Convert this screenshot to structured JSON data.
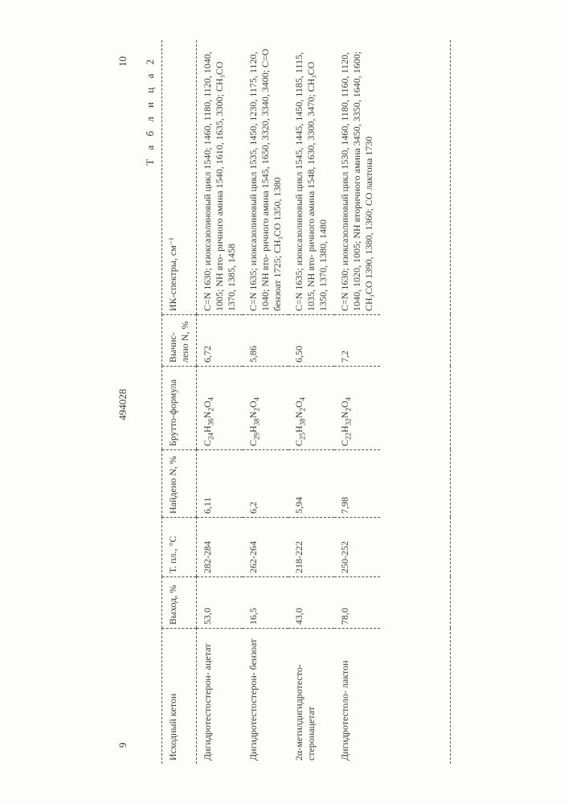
{
  "page_left_num": "9",
  "patent_num": "494028",
  "page_right_num": "10",
  "caption": "Т а б л и ц а  2",
  "columns": {
    "ketone": "Исходный кетон",
    "yield": "Выход, %",
    "mp": "Т. пл., °С",
    "foundn": "Найдено N, %",
    "formula": "Брутто-формула",
    "calcn": "Вычис-\nлено\nN, %",
    "ir": "ИК-спектры, см⁻¹"
  },
  "rows": [
    {
      "ketone": "Дигидротестостерон-\nацетат",
      "yield": "53,0",
      "mp": "282-284",
      "foundn": "6,11",
      "formula_html": "C<sub>24</sub>H<sub>36</sub>N<sub>2</sub>O<sub>4</sub>",
      "calcn": "6,72",
      "ir": "C=N 1630; изоксазолиновый цикл 1540; 1460, 1180, 1120, 1040, 1005; NH вто-\nричного амина 1540, 1610, 1635, 3300; CH₃CO 1370, 1385, 1458"
    },
    {
      "ketone": "Дигидротестостерон-\nбензоат",
      "yield": "16,5",
      "mp": "262-264",
      "foundn": "6,2",
      "formula_html": "C<sub>29</sub>H<sub>38</sub>N<sub>2</sub>O<sub>4</sub>",
      "calcn": "5,86",
      "ir": "C=N 1635; изоксазолиновый цикл 1535, 1450, 1230, 1175, 1120, 1040; NH вто-\nричного амина 1545, 1650, 3320, 3340, 3400; C=O бензоат 1725; CH₃CO 1350, 1380"
    },
    {
      "ketone": "2α-метилдигидротесто-\nстеронацетат",
      "yield": "43,0",
      "mp": "218-222",
      "foundn": "5,94",
      "formula_html": "C<sub>25</sub>H<sub>38</sub>N<sub>2</sub>O<sub>4</sub>",
      "calcn": "6,50",
      "ir": "C=N 1635; изоксазолиновый цикл 1545, 1445, 1450, 1185, 1115, 1035, NH вто-\nричного амина 1548, 1630, 3300, 3470; CH₃CO 1350, 1370, 1380, 1480"
    },
    {
      "ketone": "Дигидротестоло-\nлактон",
      "yield": "78,0",
      "mp": "250-252",
      "foundn": "7,98",
      "formula_html": "C<sub>22</sub>H<sub>32</sub>N<sub>2</sub>O<sub>4</sub>",
      "calcn": "7,2",
      "ir": "C=N 1630; изоксазолиновый цикл 1530, 1460, 1180, 1160, 1120, 1040, 1020, 1005; NH вторичного амина 3450, 3350, 1640, 1600; CH₃CO 1390, 1380, 1360; CO лактона 1730"
    }
  ]
}
